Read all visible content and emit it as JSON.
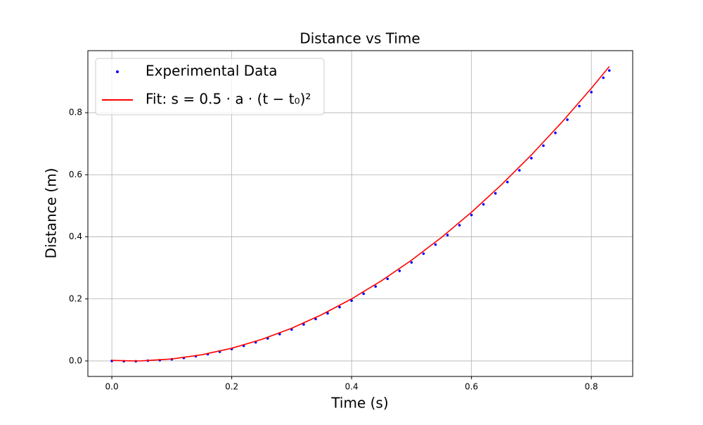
{
  "chart_data": {
    "type": "scatter-line",
    "title": "Distance vs Time",
    "x_label": "Time (s)",
    "y_label": "Distance (m)",
    "xlim": [
      -0.04,
      0.869
    ],
    "ylim": [
      -0.05,
      1.0
    ],
    "xticks": [
      {
        "value": 0,
        "label": "0.0"
      },
      0.2,
      0.4,
      0.6,
      0.8
    ],
    "yticks": [
      {
        "value": 0,
        "label": "0.0"
      },
      0.2,
      0.4,
      0.6,
      0.8
    ],
    "grid": true,
    "legend": "upper left",
    "series": [
      {
        "name": "Experimental Data",
        "type": "scatter",
        "color": "#0000ff",
        "x": [
          0,
          0.02,
          0.04,
          0.06,
          0.08,
          0.1,
          0.12,
          0.14,
          0.16,
          0.18,
          0.2,
          0.22,
          0.24,
          0.26,
          0.28,
          0.3,
          0.32,
          0.34,
          0.36,
          0.38,
          0.4,
          0.42,
          0.44,
          0.46,
          0.48,
          0.5,
          0.52,
          0.54,
          0.56,
          0.58,
          0.6,
          0.62,
          0.64,
          0.66,
          0.68,
          0.7,
          0.72,
          0.74,
          0.76,
          0.78,
          0.8,
          0.82,
          0.83
        ],
        "values": [
          0,
          -0.001,
          -0.001,
          0.001,
          0.0024,
          0.0054,
          0.0096,
          0.015,
          0.0216,
          0.0294,
          0.0384,
          0.0486,
          0.06,
          0.0726,
          0.0864,
          0.1014,
          0.1176,
          0.135,
          0.1536,
          0.1734,
          0.1944,
          0.2166,
          0.24,
          0.2646,
          0.2904,
          0.3174,
          0.3456,
          0.375,
          0.4056,
          0.4374,
          0.4704,
          0.5046,
          0.54,
          0.5766,
          0.6144,
          0.6534,
          0.6936,
          0.735,
          0.7776,
          0.8214,
          0.8664,
          0.9126,
          0.936
        ]
      },
      {
        "name": "Fit: s = 0.5 · a · (t − t₀)²",
        "type": "line",
        "color": "#ff0000",
        "x": [
          0,
          0.035,
          0.05,
          0.1,
          0.15,
          0.2,
          0.25,
          0.3,
          0.35,
          0.4,
          0.45,
          0.5,
          0.55,
          0.6,
          0.65,
          0.7,
          0.75,
          0.8,
          0.83
        ],
        "values": [
          0.0018,
          0,
          0.0003,
          0.0063,
          0.0199,
          0.0409,
          0.0694,
          0.1054,
          0.149,
          0.2,
          0.2586,
          0.3247,
          0.3982,
          0.4793,
          0.5679,
          0.664,
          0.7676,
          0.8787,
          0.949
        ]
      }
    ]
  }
}
